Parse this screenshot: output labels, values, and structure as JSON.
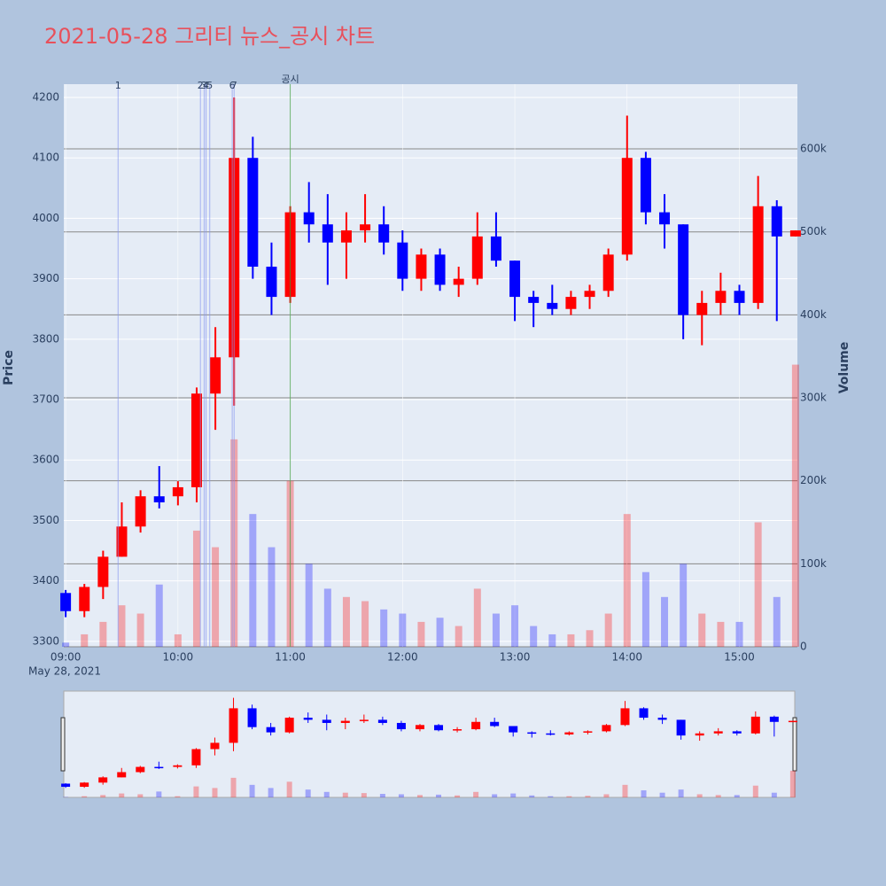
{
  "chart_data": {
    "type": "candlestick",
    "title": "2021-05-28 그리티 뉴스_공시 차트",
    "y_label": "Price",
    "y2_label": "Volume",
    "x_date_label": "May 28, 2021",
    "x": [
      "09:00",
      "09:10",
      "09:20",
      "09:30",
      "09:40",
      "09:50",
      "10:00",
      "10:10",
      "10:20",
      "10:30",
      "10:40",
      "10:50",
      "11:00",
      "11:10",
      "11:20",
      "11:30",
      "11:40",
      "11:50",
      "12:00",
      "12:10",
      "12:20",
      "12:30",
      "12:40",
      "12:50",
      "13:00",
      "13:10",
      "13:20",
      "13:30",
      "13:40",
      "13:50",
      "14:00",
      "14:10",
      "14:20",
      "14:30",
      "14:40",
      "14:50",
      "15:00",
      "15:10",
      "15:20",
      "15:30"
    ],
    "open": [
      3380,
      3350,
      3390,
      3440,
      3490,
      3540,
      3540,
      3555,
      3710,
      3770,
      4100,
      3920,
      3870,
      4010,
      3990,
      3960,
      3980,
      3990,
      3960,
      3900,
      3940,
      3890,
      3900,
      3970,
      3930,
      3870,
      3860,
      3850,
      3870,
      3880,
      3940,
      4100,
      4010,
      3990,
      3840,
      3860,
      3880,
      3860,
      4020,
      3970
    ],
    "high": [
      3385,
      3395,
      3450,
      3530,
      3550,
      3590,
      3565,
      3720,
      3820,
      4200,
      4135,
      3960,
      4020,
      4060,
      4040,
      4010,
      4040,
      4020,
      3980,
      3950,
      3950,
      3920,
      4010,
      4010,
      3930,
      3880,
      3890,
      3880,
      3890,
      3950,
      4170,
      4110,
      4040,
      3990,
      3880,
      3910,
      3890,
      4070,
      4030,
      3980
    ],
    "low": [
      3340,
      3340,
      3370,
      3440,
      3480,
      3520,
      3525,
      3530,
      3650,
      3690,
      3900,
      3840,
      3860,
      3960,
      3890,
      3900,
      3960,
      3940,
      3880,
      3880,
      3880,
      3870,
      3890,
      3920,
      3830,
      3820,
      3840,
      3840,
      3850,
      3870,
      3930,
      3990,
      3950,
      3800,
      3790,
      3840,
      3840,
      3850,
      3830,
      3970
    ],
    "close": [
      3350,
      3390,
      3440,
      3490,
      3540,
      3530,
      3555,
      3710,
      3770,
      4100,
      3920,
      3870,
      4010,
      3990,
      3960,
      3980,
      3990,
      3960,
      3900,
      3940,
      3890,
      3900,
      3970,
      3930,
      3870,
      3860,
      3850,
      3870,
      3880,
      3940,
      4100,
      4010,
      3990,
      3840,
      3860,
      3880,
      3860,
      4020,
      3970,
      3980
    ],
    "volume": [
      5000,
      15000,
      30000,
      50000,
      40000,
      75000,
      15000,
      140000,
      120000,
      250000,
      160000,
      120000,
      200000,
      100000,
      70000,
      60000,
      55000,
      45000,
      40000,
      30000,
      35000,
      25000,
      70000,
      40000,
      50000,
      25000,
      15000,
      15000,
      20000,
      40000,
      160000,
      90000,
      60000,
      100000,
      40000,
      30000,
      30000,
      150000,
      60000,
      340000
    ],
    "increasing_color": "#ff0000",
    "decreasing_color": "#0000ff",
    "xlim": [
      "08:59",
      "15:31"
    ],
    "xticks": [
      "09:00",
      "10:00",
      "11:00",
      "12:00",
      "13:00",
      "14:00",
      "15:00"
    ],
    "ylim": [
      3291,
      4222
    ],
    "yticks": [
      3300,
      3400,
      3500,
      3600,
      3700,
      3800,
      3900,
      4000,
      4100,
      4200
    ],
    "y2lim": [
      0,
      678000
    ],
    "y2ticks": [
      {
        "value": 0,
        "label": "0"
      },
      {
        "value": 100000,
        "label": "100k"
      },
      {
        "value": 200000,
        "label": "200k"
      },
      {
        "value": 300000,
        "label": "300k"
      },
      {
        "value": 400000,
        "label": "400k"
      },
      {
        "value": 500000,
        "label": "500k"
      },
      {
        "value": 600000,
        "label": "600k"
      }
    ],
    "annotations": [
      {
        "x": "09:28",
        "label": "1",
        "color": "#8898f0"
      },
      {
        "x": "10:12",
        "label": "2",
        "color": "#8898f0"
      },
      {
        "x": "10:14",
        "label": "3",
        "color": "#8898f0"
      },
      {
        "x": "10:15",
        "label": "4",
        "color": "#8898f0"
      },
      {
        "x": "10:17",
        "label": "5",
        "color": "#8898f0"
      },
      {
        "x": "10:29",
        "label": "6",
        "color": "#8898f0"
      },
      {
        "x": "10:30",
        "label": "7",
        "color": "#8898f0"
      },
      {
        "x": "11:00",
        "label": "공시",
        "color": "#3a9a3a"
      }
    ],
    "grid": true
  }
}
